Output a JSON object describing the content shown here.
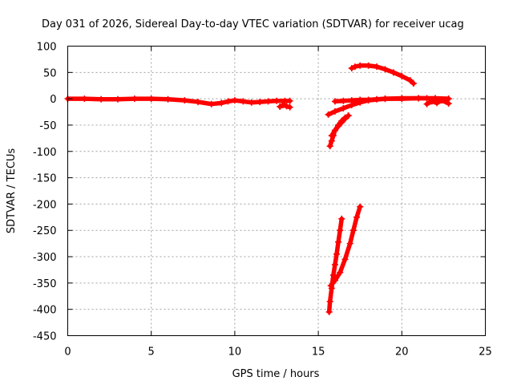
{
  "chart_data": {
    "type": "scatter",
    "title": "Day 031 of 2026, Sidereal Day-to-day VTEC variation (SDTVAR) for receiver ucag",
    "xlabel": "GPS time / hours",
    "ylabel": "SDTVAR / TECUs",
    "xlim": [
      0,
      25
    ],
    "ylim": [
      -450,
      100
    ],
    "xticks": [
      0,
      5,
      10,
      15,
      20,
      25
    ],
    "yticks": [
      100,
      50,
      0,
      -50,
      -100,
      -150,
      -200,
      -250,
      -300,
      -350,
      -400,
      -450
    ],
    "grid": true,
    "marker": "plus",
    "series": [
      {
        "color": "#ff0000",
        "tracks": [
          {
            "x": [
              0.0,
              1.0,
              2.0,
              3.0,
              4.0,
              5.0,
              6.0,
              7.0,
              7.8,
              8.6,
              9.2,
              9.6,
              10.0,
              10.5,
              11.0,
              11.5,
              12.0,
              12.5,
              13.0,
              13.3
            ],
            "y": [
              0,
              0,
              -1,
              -1,
              0,
              0,
              -1,
              -3,
              -6,
              -10,
              -8,
              -5,
              -3,
              -5,
              -7,
              -6,
              -5,
              -4,
              -4,
              -4
            ]
          },
          {
            "x": [
              12.7,
              12.9,
              13.1,
              13.3
            ],
            "y": [
              -15,
              -12,
              -14,
              -16
            ]
          },
          {
            "x": [
              15.7,
              15.8,
              15.9,
              16.0,
              16.2,
              16.4,
              16.6,
              16.8
            ],
            "y": [
              -90,
              -80,
              -70,
              -60,
              -50,
              -42,
              -36,
              -32
            ]
          },
          {
            "x": [
              15.8,
              16.0,
              16.2,
              16.4,
              16.6,
              16.8
            ],
            "y": [
              -70,
              -60,
              -52,
              -45,
              -38,
              -32
            ]
          },
          {
            "x": [
              15.6,
              16.0,
              16.5,
              17.0,
              17.5,
              18.0,
              19.0,
              20.0,
              21.0,
              22.0,
              22.8
            ],
            "y": [
              -30,
              -24,
              -18,
              -12,
              -7,
              -3,
              0,
              1,
              1,
              1,
              0
            ]
          },
          {
            "x": [
              16.0,
              16.5,
              17.0,
              17.5,
              18.0,
              18.5,
              19.0,
              20.0,
              21.0,
              21.5,
              22.0,
              22.8
            ],
            "y": [
              -5,
              -4,
              -3,
              -2,
              -2,
              -1,
              0,
              0,
              1,
              1,
              0,
              0
            ]
          },
          {
            "x": [
              21.5,
              21.8,
              22.1,
              22.4,
              22.8
            ],
            "y": [
              -10,
              -5,
              -8,
              -3,
              -9
            ]
          },
          {
            "x": [
              17.0,
              17.2,
              17.5,
              18.0,
              18.5,
              19.0,
              19.5,
              20.0,
              20.5,
              20.7
            ],
            "y": [
              58,
              61,
              63,
              63,
              61,
              56,
              50,
              43,
              35,
              29
            ]
          },
          {
            "x": [
              15.65,
              15.7,
              15.8,
              15.9,
              16.0,
              16.1,
              16.2,
              16.3,
              16.4
            ],
            "y": [
              -405,
              -385,
              -360,
              -335,
              -315,
              -295,
              -272,
              -250,
              -228
            ]
          },
          {
            "x": [
              15.75,
              16.0,
              16.3,
              16.6,
              16.9,
              17.1,
              17.3,
              17.5
            ],
            "y": [
              -355,
              -345,
              -330,
              -305,
              -275,
              -250,
              -225,
              -205
            ]
          }
        ]
      }
    ]
  }
}
